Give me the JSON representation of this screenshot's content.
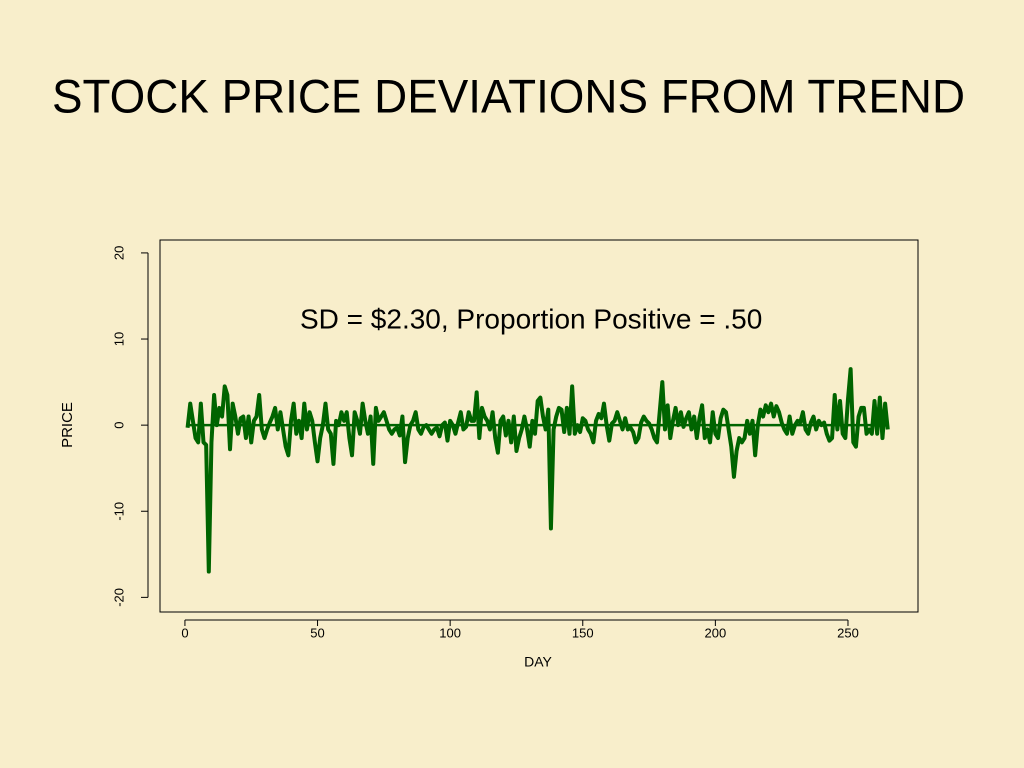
{
  "chart_data": {
    "type": "line",
    "title": "STOCK PRICE DEVIATIONS FROM TREND",
    "annotation": "SD = $2.30, Proportion Positive = .50",
    "x_label": "DAY",
    "y_label": "PRICE",
    "color": "#006400",
    "reference_line": 0,
    "xlim": [
      -9.4,
      276.4
    ],
    "ylim": [
      -21.7,
      21.5
    ],
    "xticks": [
      0,
      50,
      100,
      150,
      200,
      250
    ],
    "yticks": [
      -20,
      -10,
      0,
      10,
      20
    ],
    "x": [
      1,
      2,
      3,
      4,
      5,
      6,
      7,
      8,
      9,
      10,
      11,
      12,
      13,
      14,
      15,
      16,
      17,
      18,
      19,
      20,
      21,
      22,
      23,
      24,
      25,
      26,
      27,
      28,
      29,
      30,
      31,
      32,
      33,
      34,
      35,
      36,
      37,
      38,
      39,
      40,
      41,
      42,
      43,
      44,
      45,
      46,
      47,
      48,
      49,
      50,
      51,
      52,
      53,
      54,
      55,
      56,
      57,
      58,
      59,
      60,
      61,
      62,
      63,
      64,
      65,
      66,
      67,
      68,
      69,
      70,
      71,
      72,
      73,
      74,
      75,
      76,
      77,
      78,
      79,
      80,
      81,
      82,
      83,
      84,
      85,
      86,
      87,
      88,
      89,
      90,
      91,
      92,
      93,
      94,
      95,
      96,
      97,
      98,
      99,
      100,
      101,
      102,
      103,
      104,
      105,
      106,
      107,
      108,
      109,
      110,
      111,
      112,
      113,
      114,
      115,
      116,
      117,
      118,
      119,
      120,
      121,
      122,
      123,
      124,
      125,
      126,
      127,
      128,
      129,
      130,
      131,
      132,
      133,
      134,
      135,
      136,
      137,
      138,
      139,
      140,
      141,
      142,
      143,
      144,
      145,
      146,
      147,
      148,
      149,
      150,
      151,
      152,
      153,
      154,
      155,
      156,
      157,
      158,
      159,
      160,
      161,
      162,
      163,
      164,
      165,
      166,
      167,
      168,
      169,
      170,
      171,
      172,
      173,
      174,
      175,
      176,
      177,
      178,
      179,
      180,
      181,
      182,
      183,
      184,
      185,
      186,
      187,
      188,
      189,
      190,
      191,
      192,
      193,
      194,
      195,
      196,
      197,
      198,
      199,
      200,
      201,
      202,
      203,
      204,
      205,
      206,
      207,
      208,
      209,
      210,
      211,
      212,
      213,
      214,
      215,
      216,
      217,
      218,
      219,
      220,
      221,
      222,
      223,
      224,
      225,
      226,
      227,
      228,
      229,
      230,
      231,
      232,
      233,
      234,
      235,
      236,
      237,
      238,
      239,
      240,
      241,
      242,
      243,
      244,
      245,
      246,
      247,
      248,
      249,
      250,
      251,
      252,
      253,
      254,
      255,
      256,
      257,
      258,
      259,
      260,
      261,
      262,
      263,
      264,
      265
    ],
    "values": [
      -0.3,
      2.5,
      0.5,
      -1.5,
      -2,
      2.5,
      -2,
      -2.3,
      -17,
      -2,
      3.5,
      0,
      2,
      1,
      4.5,
      3.5,
      -2.8,
      2.5,
      1,
      -1,
      0.8,
      1,
      -1.5,
      1,
      -2,
      0.5,
      1,
      3.5,
      -0.5,
      -1.5,
      -0.5,
      0.3,
      1,
      2,
      -0.5,
      1.5,
      -0.5,
      -2.5,
      -3.5,
      0.5,
      2.5,
      -1,
      0.5,
      -1.5,
      2.5,
      -0.5,
      1.5,
      0.5,
      -2,
      -4.2,
      -1.5,
      0,
      2.5,
      -0.5,
      -1,
      -4.5,
      0.5,
      0,
      1.5,
      0.5,
      1.5,
      -1.5,
      -3.5,
      1.5,
      0.5,
      -1,
      2.5,
      0.5,
      -1,
      1,
      -4.5,
      2,
      0.5,
      1,
      1.5,
      0.5,
      -0.5,
      -1,
      -0.5,
      -0.3,
      -1.2,
      1,
      -4.3,
      -1.5,
      0,
      0.5,
      1.5,
      -0.5,
      -1,
      -0.2,
      0,
      -0.5,
      -1,
      -0.5,
      -0.3,
      -1.3,
      0,
      0.3,
      -1.8,
      0.5,
      0,
      -1,
      0.3,
      1.5,
      -0.5,
      -0.2,
      1.5,
      0.5,
      0.5,
      3.8,
      -1.5,
      2,
      1,
      0.5,
      -0.5,
      1.5,
      -1.5,
      -3.2,
      0.5,
      1,
      -1.2,
      0.5,
      -2,
      1,
      -3,
      -1.5,
      -0.5,
      1,
      -0.5,
      -2.5,
      0.5,
      -1,
      2.8,
      3.2,
      1,
      -0.5,
      1.8,
      -12,
      -0.5,
      1,
      2,
      1.8,
      -0.8,
      2,
      -1,
      4.5,
      -1,
      0,
      -0.8,
      0.8,
      0.5,
      -0.5,
      -1,
      -2,
      0.5,
      1.3,
      0.8,
      2.5,
      0,
      -1.8,
      0.2,
      0.5,
      1.5,
      0.5,
      -0.5,
      0.8,
      -0.5,
      -0.3,
      -0.8,
      -2,
      -1.5,
      0.3,
      1,
      0.5,
      0.2,
      -0.5,
      -1.5,
      -2,
      1.5,
      5,
      -0.5,
      2.3,
      -1.5,
      0.5,
      2,
      0,
      1.5,
      -0.2,
      0.8,
      1.5,
      -0.5,
      1,
      -1.5,
      0.8,
      2.3,
      -1.5,
      -0.5,
      -2,
      1.5,
      -1,
      -1.5,
      0.8,
      1.8,
      1.5,
      -0.5,
      -2.5,
      -6,
      -3,
      -1.5,
      -2,
      -1.5,
      0.5,
      -1,
      0.5,
      -3.5,
      0,
      1.8,
      1,
      2.3,
      1.5,
      2.5,
      1,
      2.2,
      1.5,
      0.3,
      -0.5,
      -1,
      1,
      -1,
      0,
      0.5,
      0.3,
      1.5,
      -0.5,
      -1,
      0.3,
      1,
      -0.5,
      0.5,
      0,
      0.3,
      -1,
      -1.8,
      -1.5,
      3.5,
      -0.5,
      2.8,
      -1,
      -1.5,
      3,
      6.5,
      -2,
      -2.5,
      1,
      2,
      2,
      -1,
      -0.5,
      -1,
      2.8,
      -1,
      3.2,
      -1.5,
      2.5,
      -0.5
    ]
  }
}
